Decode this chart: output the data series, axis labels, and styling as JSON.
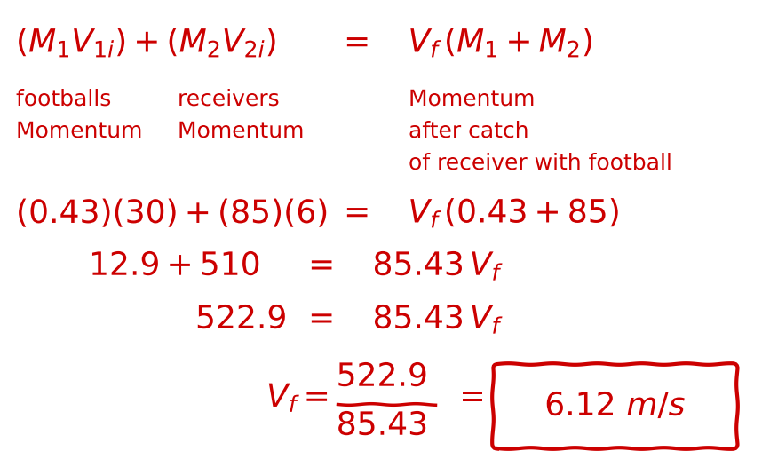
{
  "background_color": "#ffffff",
  "text_color": "#cc0000",
  "fig_width": 8.58,
  "fig_height": 5.17,
  "dpi": 100
}
